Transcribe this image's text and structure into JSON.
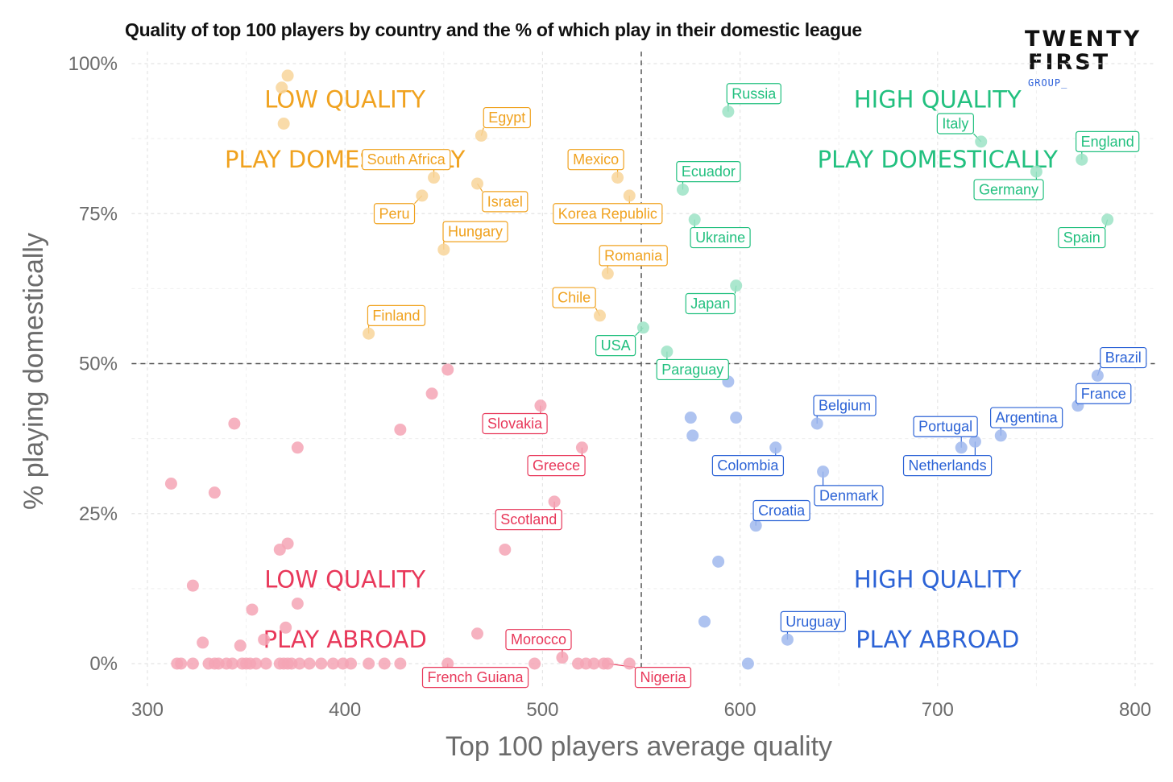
{
  "chart_data": {
    "type": "scatter",
    "title": "Quality of top 100 players by country and the % of which play in their domestic league",
    "xlabel": "Top 100 players average quality",
    "ylabel": "% playing domestically",
    "xlim": [
      292,
      810
    ],
    "ylim": [
      -4,
      102
    ],
    "x_ticks": [
      300,
      400,
      500,
      600,
      700,
      800
    ],
    "y_ticks": [
      {
        "value": 0,
        "label": "0%"
      },
      {
        "value": 25,
        "label": "25%"
      },
      {
        "value": 50,
        "label": "50%"
      },
      {
        "value": 75,
        "label": "75%"
      },
      {
        "value": 100,
        "label": "100%"
      }
    ],
    "grid": true,
    "reference_lines": {
      "x": 550,
      "y": 50
    },
    "colors": {
      "low_domestic": "#f0a21f",
      "high_domestic": "#22c07f",
      "low_abroad": "#e8385a",
      "high_abroad": "#2c63d6"
    },
    "quadrant_labels": [
      {
        "group": "low_domestic",
        "lines": [
          "LOW QUALITY",
          "PLAY DOMESTICALLY"
        ]
      },
      {
        "group": "high_domestic",
        "lines": [
          "HIGH QUALITY",
          "PLAY DOMESTICALLY"
        ]
      },
      {
        "group": "low_abroad",
        "lines": [
          "LOW QUALITY",
          "PLAY ABROAD"
        ]
      },
      {
        "group": "high_abroad",
        "lines": [
          "HIGH QUALITY",
          "PLAY ABROAD"
        ]
      }
    ],
    "series": [
      {
        "group": "low_domestic",
        "points": [
          {
            "x": 371,
            "y": 98
          },
          {
            "x": 368,
            "y": 96
          },
          {
            "x": 369,
            "y": 90
          },
          {
            "x": 469,
            "y": 88,
            "label": "Egypt",
            "lx": 482,
            "ly": 91
          },
          {
            "x": 445,
            "y": 81,
            "label": "South Africa",
            "lx": 431,
            "ly": 84
          },
          {
            "x": 467,
            "y": 80,
            "label": "Israel",
            "lx": 481,
            "ly": 77
          },
          {
            "x": 538,
            "y": 81,
            "label": "Mexico",
            "lx": 527,
            "ly": 84
          },
          {
            "x": 439,
            "y": 78,
            "label": "Peru",
            "lx": 425,
            "ly": 75
          },
          {
            "x": 544,
            "y": 78,
            "label": "Korea Republic",
            "lx": 533,
            "ly": 75
          },
          {
            "x": 450,
            "y": 69,
            "label": "Hungary",
            "lx": 466,
            "ly": 72
          },
          {
            "x": 533,
            "y": 65,
            "label": "Romania",
            "lx": 546,
            "ly": 68
          },
          {
            "x": 529,
            "y": 58,
            "label": "Chile",
            "lx": 516,
            "ly": 61
          },
          {
            "x": 412,
            "y": 55,
            "label": "Finland",
            "lx": 426,
            "ly": 58
          }
        ]
      },
      {
        "group": "high_domestic",
        "points": [
          {
            "x": 594,
            "y": 92,
            "label": "Russia",
            "lx": 607,
            "ly": 95
          },
          {
            "x": 722,
            "y": 87,
            "label": "Italy",
            "lx": 709,
            "ly": 90
          },
          {
            "x": 773,
            "y": 84,
            "label": "England",
            "lx": 786,
            "ly": 87
          },
          {
            "x": 750,
            "y": 82,
            "label": "Germany",
            "lx": 736,
            "ly": 79
          },
          {
            "x": 571,
            "y": 79,
            "label": "Ecuador",
            "lx": 584,
            "ly": 82
          },
          {
            "x": 786,
            "y": 74,
            "label": "Spain",
            "lx": 773,
            "ly": 71
          },
          {
            "x": 577,
            "y": 74,
            "label": "Ukraine",
            "lx": 590,
            "ly": 71
          },
          {
            "x": 598,
            "y": 63,
            "label": "Japan",
            "lx": 585,
            "ly": 60
          },
          {
            "x": 551,
            "y": 56,
            "label": "USA",
            "lx": 537,
            "ly": 53
          },
          {
            "x": 563,
            "y": 52,
            "label": "Paraguay",
            "lx": 576,
            "ly": 49
          }
        ]
      },
      {
        "group": "low_abroad",
        "points": [
          {
            "x": 452,
            "y": 49
          },
          {
            "x": 444,
            "y": 45
          },
          {
            "x": 499,
            "y": 43,
            "label": "Slovakia",
            "lx": 486,
            "ly": 40
          },
          {
            "x": 344,
            "y": 40
          },
          {
            "x": 428,
            "y": 39
          },
          {
            "x": 376,
            "y": 36
          },
          {
            "x": 520,
            "y": 36,
            "label": "Greece",
            "lx": 507,
            "ly": 33
          },
          {
            "x": 312,
            "y": 30
          },
          {
            "x": 334,
            "y": 28.5
          },
          {
            "x": 506,
            "y": 27,
            "label": "Scotland",
            "lx": 493,
            "ly": 24
          },
          {
            "x": 371,
            "y": 20
          },
          {
            "x": 481,
            "y": 19
          },
          {
            "x": 367,
            "y": 19
          },
          {
            "x": 323,
            "y": 13
          },
          {
            "x": 376,
            "y": 10
          },
          {
            "x": 353,
            "y": 9
          },
          {
            "x": 370,
            "y": 6
          },
          {
            "x": 467,
            "y": 5
          },
          {
            "x": 359,
            "y": 4
          },
          {
            "x": 328,
            "y": 3.5
          },
          {
            "x": 347,
            "y": 3
          },
          {
            "x": 510,
            "y": 1,
            "label": "Morocco",
            "lx": 498,
            "ly": 4
          },
          {
            "x": 315,
            "y": 0
          },
          {
            "x": 317,
            "y": 0
          },
          {
            "x": 323,
            "y": 0
          },
          {
            "x": 331,
            "y": 0
          },
          {
            "x": 334,
            "y": 0
          },
          {
            "x": 336,
            "y": 0
          },
          {
            "x": 340,
            "y": 0
          },
          {
            "x": 343,
            "y": 0
          },
          {
            "x": 348,
            "y": 0
          },
          {
            "x": 350,
            "y": 0
          },
          {
            "x": 352,
            "y": 0
          },
          {
            "x": 355,
            "y": 0
          },
          {
            "x": 360,
            "y": 0
          },
          {
            "x": 367,
            "y": 0
          },
          {
            "x": 369,
            "y": 0
          },
          {
            "x": 371,
            "y": 0
          },
          {
            "x": 373,
            "y": 0
          },
          {
            "x": 377,
            "y": 0
          },
          {
            "x": 382,
            "y": 0
          },
          {
            "x": 388,
            "y": 0
          },
          {
            "x": 394,
            "y": 0
          },
          {
            "x": 399,
            "y": 0
          },
          {
            "x": 403,
            "y": 0
          },
          {
            "x": 412,
            "y": 0
          },
          {
            "x": 420,
            "y": 0
          },
          {
            "x": 428,
            "y": 0
          },
          {
            "x": 452,
            "y": 0,
            "label": "French Guiana",
            "lx": 466,
            "ly": -2.3
          },
          {
            "x": 496,
            "y": 0
          },
          {
            "x": 518,
            "y": 0
          },
          {
            "x": 522,
            "y": 0
          },
          {
            "x": 526,
            "y": 0
          },
          {
            "x": 531,
            "y": 0
          },
          {
            "x": 533,
            "y": 0,
            "label": "Nigeria",
            "lx": 561,
            "ly": -2.3
          },
          {
            "x": 544,
            "y": 0
          }
        ]
      },
      {
        "group": "high_abroad",
        "points": [
          {
            "x": 781,
            "y": 48,
            "label": "Brazil",
            "lx": 794,
            "ly": 51
          },
          {
            "x": 594,
            "y": 47
          },
          {
            "x": 771,
            "y": 43,
            "label": "France",
            "lx": 784,
            "ly": 45
          },
          {
            "x": 575,
            "y": 41
          },
          {
            "x": 598,
            "y": 41
          },
          {
            "x": 639,
            "y": 40,
            "label": "Belgium",
            "lx": 653,
            "ly": 43
          },
          {
            "x": 732,
            "y": 38,
            "label": "Argentina",
            "lx": 745,
            "ly": 41
          },
          {
            "x": 576,
            "y": 38
          },
          {
            "x": 712,
            "y": 36,
            "label": "Portugal",
            "lx": 704,
            "ly": 39.5
          },
          {
            "x": 719,
            "y": 37,
            "label": "Netherlands",
            "lx": 705,
            "ly": 33
          },
          {
            "x": 618,
            "y": 36,
            "label": "Colombia",
            "lx": 604,
            "ly": 33
          },
          {
            "x": 642,
            "y": 32,
            "label": "Denmark",
            "lx": 655,
            "ly": 28
          },
          {
            "x": 608,
            "y": 23,
            "label": "Croatia",
            "lx": 621,
            "ly": 25.5
          },
          {
            "x": 589,
            "y": 17
          },
          {
            "x": 582,
            "y": 7
          },
          {
            "x": 624,
            "y": 4,
            "label": "Uruguay",
            "lx": 637,
            "ly": 7
          },
          {
            "x": 604,
            "y": 0
          }
        ]
      }
    ]
  },
  "brand": {
    "line1": "TWENTY",
    "line2": "FIRST",
    "line3": "GROUP_"
  }
}
